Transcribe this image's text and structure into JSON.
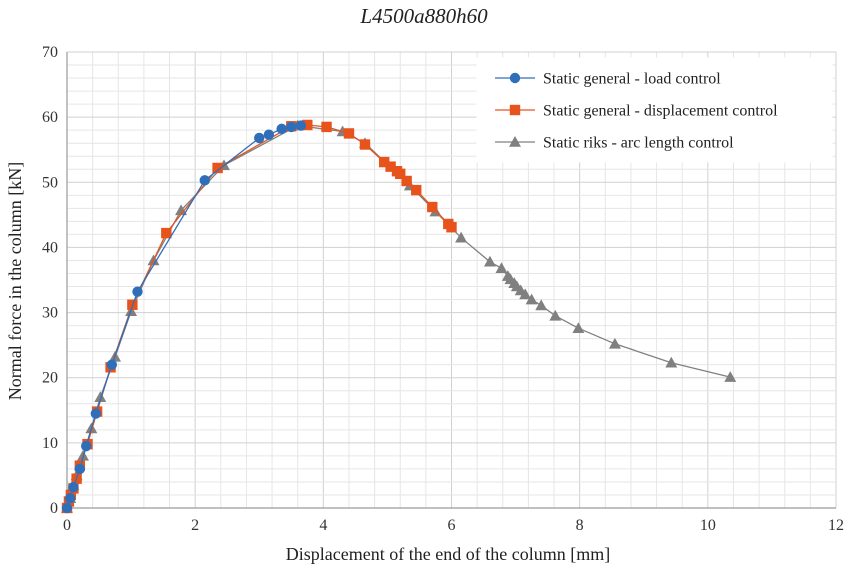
{
  "chart_data": {
    "type": "line",
    "title": "L4500a880h60",
    "xlabel": "Displacement of the end of the column [mm]",
    "ylabel": "Normal force in the column [kN]",
    "xlim": [
      0,
      12
    ],
    "ylim": [
      0,
      70
    ],
    "xticks": [
      "0",
      "2",
      "4",
      "6",
      "8",
      "10",
      "12"
    ],
    "yticks": [
      "0",
      "10",
      "20",
      "30",
      "40",
      "50",
      "60",
      "70"
    ],
    "grid": true,
    "legend_position": "top-right",
    "series": [
      {
        "name": "Static general - load control",
        "color": "#2f6fba",
        "marker": "circle",
        "points": [
          [
            0,
            0
          ],
          [
            0.05,
            1.5
          ],
          [
            0.1,
            3.2
          ],
          [
            0.2,
            6
          ],
          [
            0.3,
            9.5
          ],
          [
            0.45,
            14.5
          ],
          [
            0.7,
            22
          ],
          [
            1.1,
            33.2
          ],
          [
            2.15,
            50.3
          ],
          [
            3.0,
            56.8
          ],
          [
            3.15,
            57.3
          ],
          [
            3.35,
            58.2
          ],
          [
            3.5,
            58.5
          ],
          [
            3.65,
            58.7
          ]
        ]
      },
      {
        "name": "Static general - displacement control",
        "color": "#e8531c",
        "marker": "square",
        "points": [
          [
            0,
            0
          ],
          [
            0.03,
            1
          ],
          [
            0.06,
            2
          ],
          [
            0.1,
            3
          ],
          [
            0.15,
            4.5
          ],
          [
            0.2,
            6.5
          ],
          [
            0.32,
            9.8
          ],
          [
            0.47,
            14.8
          ],
          [
            0.68,
            21.6
          ],
          [
            1.02,
            31.2
          ],
          [
            1.55,
            42.2
          ],
          [
            2.35,
            52.2
          ],
          [
            3.5,
            58.6
          ],
          [
            3.75,
            58.8
          ],
          [
            4.05,
            58.5
          ],
          [
            4.4,
            57.5
          ],
          [
            4.65,
            55.8
          ],
          [
            4.95,
            53.1
          ],
          [
            5.05,
            52.4
          ],
          [
            5.15,
            51.7
          ],
          [
            5.2,
            51.3
          ],
          [
            5.3,
            50.2
          ],
          [
            5.45,
            48.8
          ],
          [
            5.7,
            46.2
          ],
          [
            5.95,
            43.6
          ],
          [
            6.0,
            43.1
          ]
        ]
      },
      {
        "name": "Static riks - arc length control",
        "color": "#808080",
        "marker": "triangle",
        "points": [
          [
            0,
            0
          ],
          [
            0.05,
            1.5
          ],
          [
            0.1,
            3.5
          ],
          [
            0.15,
            5
          ],
          [
            0.25,
            8
          ],
          [
            0.38,
            12.2
          ],
          [
            0.52,
            17
          ],
          [
            0.75,
            23.2
          ],
          [
            1.0,
            30.2
          ],
          [
            1.35,
            38
          ],
          [
            1.78,
            45.7
          ],
          [
            2.45,
            52.6
          ],
          [
            3.6,
            58.7
          ],
          [
            4.3,
            57.8
          ],
          [
            4.65,
            56
          ],
          [
            5.35,
            49.5
          ],
          [
            5.75,
            45.5
          ],
          [
            6.15,
            41.5
          ],
          [
            6.6,
            37.8
          ],
          [
            6.78,
            36.8
          ],
          [
            6.88,
            35.6
          ],
          [
            6.92,
            35.1
          ],
          [
            6.98,
            34.5
          ],
          [
            7.02,
            34
          ],
          [
            7.08,
            33.4
          ],
          [
            7.15,
            32.8
          ],
          [
            7.25,
            32
          ],
          [
            7.4,
            31.1
          ],
          [
            7.62,
            29.5
          ],
          [
            7.98,
            27.6
          ],
          [
            8.55,
            25.2
          ],
          [
            9.43,
            22.3
          ],
          [
            10.35,
            20.1
          ]
        ]
      }
    ]
  }
}
